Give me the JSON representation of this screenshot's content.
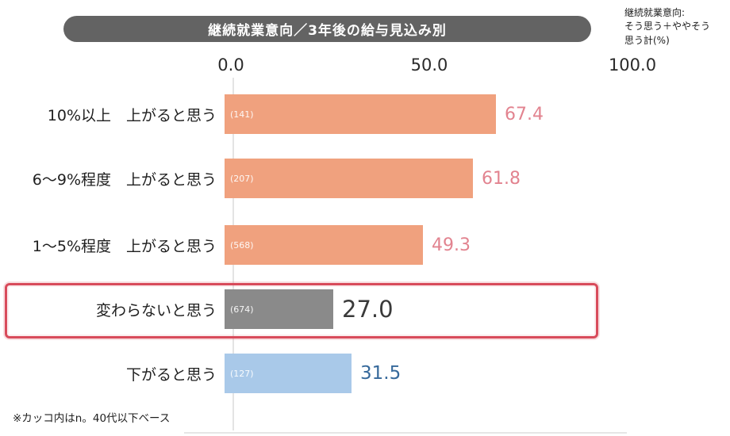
{
  "header": {
    "title": "継続就業意向／3年後の給与見込み別",
    "title_bg": "#636363",
    "note_lines": [
      "継続就業意向:",
      "そう思う＋ややそう",
      "思う計(%)"
    ]
  },
  "footnote": "※カッコ内はn。40代以下ベース",
  "chart_data": {
    "type": "bar",
    "orientation": "horizontal",
    "title": "継続就業意向／3年後の給与見込み別",
    "ylabel": "3年後の給与見込み",
    "xlabel": "継続就業意向 そう思う＋ややそう思う計(%)",
    "xlim": [
      0.0,
      100.0
    ],
    "x_ticks": [
      "0.0",
      "50.0",
      "100.0"
    ],
    "grid": false,
    "categories": [
      "10%以上　上がると思う",
      "6～9%程度　上がると思う",
      "1～5%程度　上がると思う",
      "変わらないと思う",
      "下がると思う"
    ],
    "rows": [
      {
        "label": "10%以上　上がると思う",
        "n_label": "(141)",
        "value": 67.4,
        "value_text": "67.4",
        "bar_color": "#F0A17E",
        "value_color": "#E2838F",
        "highlighted": false
      },
      {
        "label": "6～9%程度　上がると思う",
        "n_label": "(207)",
        "value": 61.8,
        "value_text": "61.8",
        "bar_color": "#F0A17E",
        "value_color": "#E2838F",
        "highlighted": false
      },
      {
        "label": "1～5%程度　上がると思う",
        "n_label": "(568)",
        "value": 49.3,
        "value_text": "49.3",
        "bar_color": "#F0A17E",
        "value_color": "#E2838F",
        "highlighted": false
      },
      {
        "label": "変わらないと思う",
        "n_label": "(674)",
        "value": 27.0,
        "value_text": "27.0",
        "bar_color": "#8A8A8A",
        "value_color": "#3A3A3A",
        "highlighted": true
      },
      {
        "label": "下がると思う",
        "n_label": "(127)",
        "value": 31.5,
        "value_text": "31.5",
        "bar_color": "#A9C9E9",
        "value_color": "#36699B",
        "highlighted": false
      }
    ],
    "highlight_border_color": "#D84B5B"
  }
}
